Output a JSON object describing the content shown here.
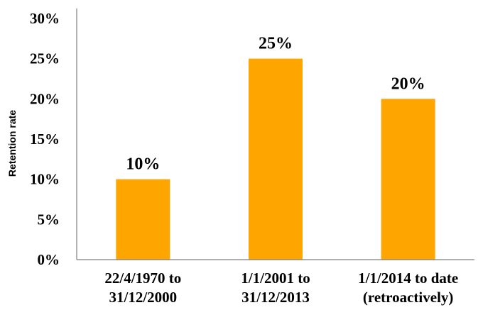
{
  "chart_data": {
    "type": "bar",
    "title": "",
    "xlabel": "",
    "ylabel": "Retention rate",
    "categories": [
      [
        "22/4/1970 to",
        "31/12/2000"
      ],
      [
        "1/1/2001 to",
        "31/12/2013"
      ],
      [
        "1/1/2014 to date",
        "(retroactively)"
      ]
    ],
    "values": [
      10,
      25,
      20
    ],
    "data_labels": [
      "10%",
      "25%",
      "20%"
    ],
    "ylim": [
      0,
      30
    ],
    "yticks": [
      0,
      5,
      10,
      15,
      20,
      25,
      30
    ],
    "ytick_labels": [
      "0%",
      "5%",
      "10%",
      "15%",
      "20%",
      "25%",
      "30%"
    ],
    "grid": false,
    "legend": "none",
    "bar_color": "#FFA500",
    "axis_color": "#7f7f7f"
  }
}
